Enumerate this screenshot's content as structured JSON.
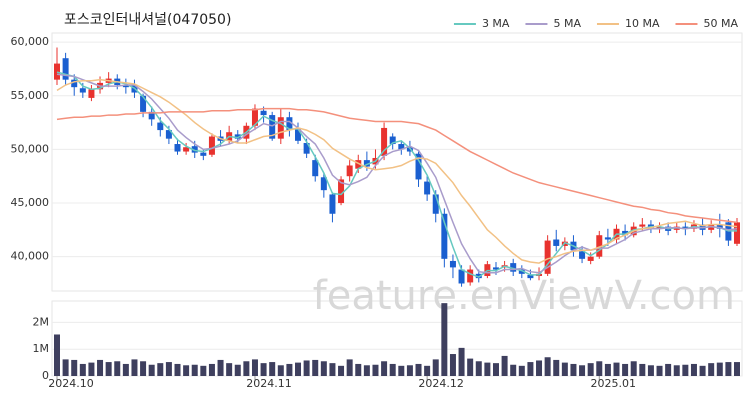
{
  "chart_data": {
    "type": "candlestick",
    "title": "포스코인터내셔널(047050)",
    "watermark": "feature.enViewV.com",
    "categories": [
      "2024.10",
      null,
      null,
      null,
      null,
      null,
      null,
      null,
      null,
      null,
      null,
      null,
      null,
      null,
      null,
      null,
      null,
      null,
      null,
      null,
      null,
      null,
      null,
      "2024.11",
      null,
      null,
      null,
      null,
      null,
      null,
      null,
      null,
      null,
      null,
      null,
      null,
      null,
      null,
      null,
      null,
      null,
      null,
      null,
      "2024.12",
      null,
      null,
      null,
      null,
      null,
      null,
      null,
      null,
      null,
      null,
      null,
      null,
      null,
      null,
      null,
      null,
      null,
      null,
      null,
      "2025.01",
      null,
      null,
      null,
      null,
      null,
      null,
      null,
      null,
      null,
      null,
      null,
      null,
      null,
      null,
      null,
      null
    ],
    "open": [
      56500,
      58500,
      56500,
      55700,
      54800,
      55600,
      56200,
      56600,
      56000,
      56000,
      55000,
      53500,
      52500,
      51800,
      50500,
      49800,
      50300,
      49700,
      49500,
      51200,
      50800,
      51400,
      51000,
      52200,
      53600,
      53200,
      51000,
      53000,
      52000,
      50600,
      49000,
      47400,
      45800,
      45000,
      47500,
      48200,
      49000,
      48600,
      49400,
      51200,
      50500,
      50200,
      49600,
      47000,
      45800,
      44000,
      39600,
      38800,
      37600,
      38400,
      38200,
      39000,
      39000,
      39400,
      38800,
      38300,
      38200,
      38400,
      41600,
      41000,
      41400,
      40500,
      39600,
      40000,
      41800,
      41600,
      42400,
      42000,
      42800,
      43000,
      42600,
      42800,
      42500,
      42800,
      42600,
      43000,
      42500,
      43000,
      43200,
      41200
    ],
    "high": [
      59500,
      59000,
      57000,
      56200,
      56000,
      56800,
      57200,
      57000,
      56600,
      56500,
      55200,
      54000,
      53000,
      52200,
      51000,
      50600,
      50800,
      50000,
      51500,
      51800,
      52200,
      51800,
      52500,
      54200,
      54000,
      53500,
      53800,
      53500,
      52500,
      51000,
      49500,
      47800,
      46000,
      47500,
      49000,
      49500,
      49800,
      50000,
      52500,
      51500,
      50800,
      50800,
      49800,
      47500,
      46200,
      44500,
      40200,
      39200,
      39200,
      38800,
      39600,
      39500,
      39600,
      39800,
      39200,
      38800,
      39000,
      42000,
      42500,
      41800,
      42000,
      41000,
      40400,
      42400,
      42600,
      43000,
      43000,
      43200,
      43600,
      43400,
      43200,
      43200,
      43200,
      43200,
      43400,
      43600,
      43400,
      44000,
      43500,
      43600
    ],
    "low": [
      56000,
      56000,
      55000,
      54800,
      54500,
      55200,
      55800,
      55600,
      55200,
      54800,
      53000,
      52200,
      51200,
      50500,
      49500,
      49500,
      49200,
      49000,
      49300,
      50300,
      50500,
      50600,
      50500,
      51800,
      52500,
      50800,
      50500,
      51200,
      50500,
      49200,
      47000,
      45500,
      43200,
      44800,
      47000,
      47800,
      48000,
      48200,
      49000,
      50000,
      49500,
      49400,
      46500,
      45200,
      43200,
      39000,
      38000,
      37200,
      37300,
      37600,
      38000,
      38300,
      38600,
      38200,
      38000,
      37800,
      37800,
      38200,
      40500,
      40600,
      40000,
      39400,
      39300,
      39800,
      41000,
      41200,
      41500,
      41800,
      42400,
      42200,
      42200,
      42000,
      42200,
      42000,
      42300,
      42000,
      42200,
      41800,
      41000,
      41000
    ],
    "close": [
      58000,
      56500,
      55800,
      55300,
      55600,
      56200,
      56600,
      56000,
      55800,
      55300,
      53500,
      52800,
      51800,
      51000,
      49800,
      50200,
      49700,
      49400,
      51200,
      50800,
      51600,
      51000,
      52200,
      53800,
      53200,
      51000,
      53000,
      51800,
      50800,
      49600,
      47500,
      46200,
      44000,
      47200,
      48500,
      49000,
      48400,
      49200,
      52000,
      50500,
      50000,
      49800,
      47200,
      45800,
      44000,
      39800,
      39000,
      37500,
      38800,
      38000,
      39300,
      38800,
      39200,
      38600,
      38400,
      38000,
      38400,
      41500,
      41000,
      41400,
      40600,
      39800,
      40000,
      42000,
      41600,
      42600,
      42000,
      42800,
      43000,
      42600,
      42800,
      42400,
      42800,
      42600,
      43000,
      42500,
      43000,
      42600,
      41500,
      43200
    ],
    "up_color": "#e8322e",
    "down_color": "#1a5fd0",
    "ylim": [
      36800,
      60850
    ],
    "yticks": [
      {
        "value": 40000,
        "label": "40,000"
      },
      {
        "value": 45000,
        "label": "45,000"
      },
      {
        "value": 50000,
        "label": "50,000"
      },
      {
        "value": 55000,
        "label": "55,000"
      },
      {
        "value": 60000,
        "label": "60,000"
      }
    ],
    "grid": true,
    "legend": "top-right",
    "ma_series": [
      {
        "name": "3 MA",
        "color": "#66c9c0",
        "values": [
          57200,
          57000,
          56800,
          55900,
          55600,
          55700,
          56100,
          56300,
          56100,
          55700,
          54900,
          53900,
          52700,
          51900,
          50900,
          50300,
          49900,
          49800,
          50100,
          50500,
          51200,
          51100,
          51600,
          52300,
          53100,
          52700,
          52400,
          51900,
          51900,
          50700,
          49300,
          47800,
          45900,
          45800,
          46600,
          48200,
          48600,
          48900,
          49900,
          50600,
          50800,
          50100,
          49000,
          47600,
          45700,
          43200,
          40900,
          38800,
          38400,
          38100,
          38700,
          38700,
          39100,
          38900,
          38700,
          38300,
          38300,
          39300,
          40300,
          41300,
          41000,
          40600,
          40100,
          40600,
          41200,
          42100,
          42100,
          42500,
          42600,
          42800,
          42800,
          42600,
          42700,
          42600,
          42800,
          42700,
          42800,
          42700,
          42400,
          42400
        ]
      },
      {
        "name": "5 MA",
        "color": "#a99ccb",
        "values": [
          57000,
          56900,
          56800,
          56500,
          56200,
          55900,
          55900,
          55900,
          56000,
          56000,
          55400,
          54700,
          53800,
          52900,
          51800,
          51100,
          50500,
          50000,
          50100,
          50300,
          50500,
          50800,
          51400,
          51900,
          52400,
          52200,
          52600,
          52600,
          52000,
          51200,
          50500,
          49200,
          47600,
          46900,
          46700,
          47000,
          47400,
          48500,
          49400,
          49800,
          50000,
          50300,
          49900,
          48700,
          47400,
          45300,
          43200,
          41200,
          39800,
          38600,
          38500,
          38500,
          38800,
          38800,
          38900,
          38600,
          38500,
          39000,
          39500,
          40100,
          40600,
          40900,
          40600,
          40800,
          40800,
          41200,
          41600,
          42200,
          42400,
          42600,
          42600,
          42700,
          42700,
          42600,
          42700,
          42700,
          42800,
          42700,
          42500,
          42600
        ]
      },
      {
        "name": "10 MA",
        "color": "#f2c185",
        "values": [
          55500,
          56000,
          56300,
          56400,
          56400,
          56500,
          56400,
          56300,
          56200,
          56100,
          55700,
          55300,
          54900,
          54400,
          53800,
          53200,
          52500,
          51900,
          51400,
          51000,
          50800,
          50600,
          50600,
          50900,
          51200,
          51300,
          51600,
          51800,
          52000,
          51800,
          51400,
          50900,
          50100,
          49600,
          49100,
          48700,
          48300,
          48100,
          48200,
          48300,
          48500,
          48900,
          49200,
          49100,
          48700,
          47800,
          46900,
          45700,
          44700,
          43600,
          42500,
          41800,
          41000,
          40300,
          39700,
          39500,
          39400,
          39800,
          40000,
          40300,
          40500,
          40600,
          40600,
          40900,
          41200,
          41700,
          42000,
          42400,
          42600,
          42700,
          42900,
          43100,
          43200,
          43300,
          43100,
          42900,
          43000,
          43000,
          42900,
          42800
        ]
      },
      {
        "name": "50 MA",
        "color": "#f4907c",
        "values": [
          52800,
          52900,
          53000,
          53000,
          53100,
          53100,
          53200,
          53200,
          53300,
          53300,
          53400,
          53400,
          53400,
          53500,
          53500,
          53500,
          53500,
          53500,
          53600,
          53600,
          53600,
          53700,
          53700,
          53700,
          53800,
          53800,
          53800,
          53800,
          53700,
          53700,
          53600,
          53500,
          53300,
          53100,
          52900,
          52800,
          52700,
          52600,
          52600,
          52600,
          52600,
          52500,
          52400,
          52100,
          51800,
          51300,
          50800,
          50300,
          49800,
          49400,
          49000,
          48600,
          48200,
          47800,
          47500,
          47200,
          46900,
          46700,
          46500,
          46300,
          46100,
          45900,
          45700,
          45500,
          45300,
          45100,
          44900,
          44700,
          44600,
          44400,
          44300,
          44100,
          44000,
          43800,
          43700,
          43600,
          43500,
          43400,
          43300,
          43200
        ]
      }
    ],
    "volume": {
      "color": "#3e3f5e",
      "values": [
        1550000,
        620000,
        600000,
        450000,
        500000,
        600000,
        520000,
        550000,
        450000,
        620000,
        550000,
        420000,
        480000,
        520000,
        450000,
        400000,
        420000,
        380000,
        450000,
        600000,
        480000,
        420000,
        550000,
        620000,
        480000,
        520000,
        400000,
        450000,
        500000,
        580000,
        600000,
        550000,
        480000,
        380000,
        620000,
        450000,
        400000,
        420000,
        550000,
        450000,
        380000,
        400000,
        450000,
        380000,
        620000,
        2720000,
        820000,
        1050000,
        650000,
        550000,
        500000,
        480000,
        750000,
        420000,
        380000,
        520000,
        580000,
        700000,
        600000,
        500000,
        450000,
        400000,
        480000,
        550000,
        450000,
        500000,
        450000,
        550000,
        450000,
        400000,
        380000,
        450000,
        400000,
        420000,
        450000,
        380000,
        480000,
        500000,
        520000,
        520000
      ],
      "ylim": [
        0,
        2800000
      ],
      "yticks": [
        0,
        {
          "value": 1000000,
          "label": "1M"
        },
        {
          "value": 2000000,
          "label": "2M"
        }
      ]
    }
  }
}
